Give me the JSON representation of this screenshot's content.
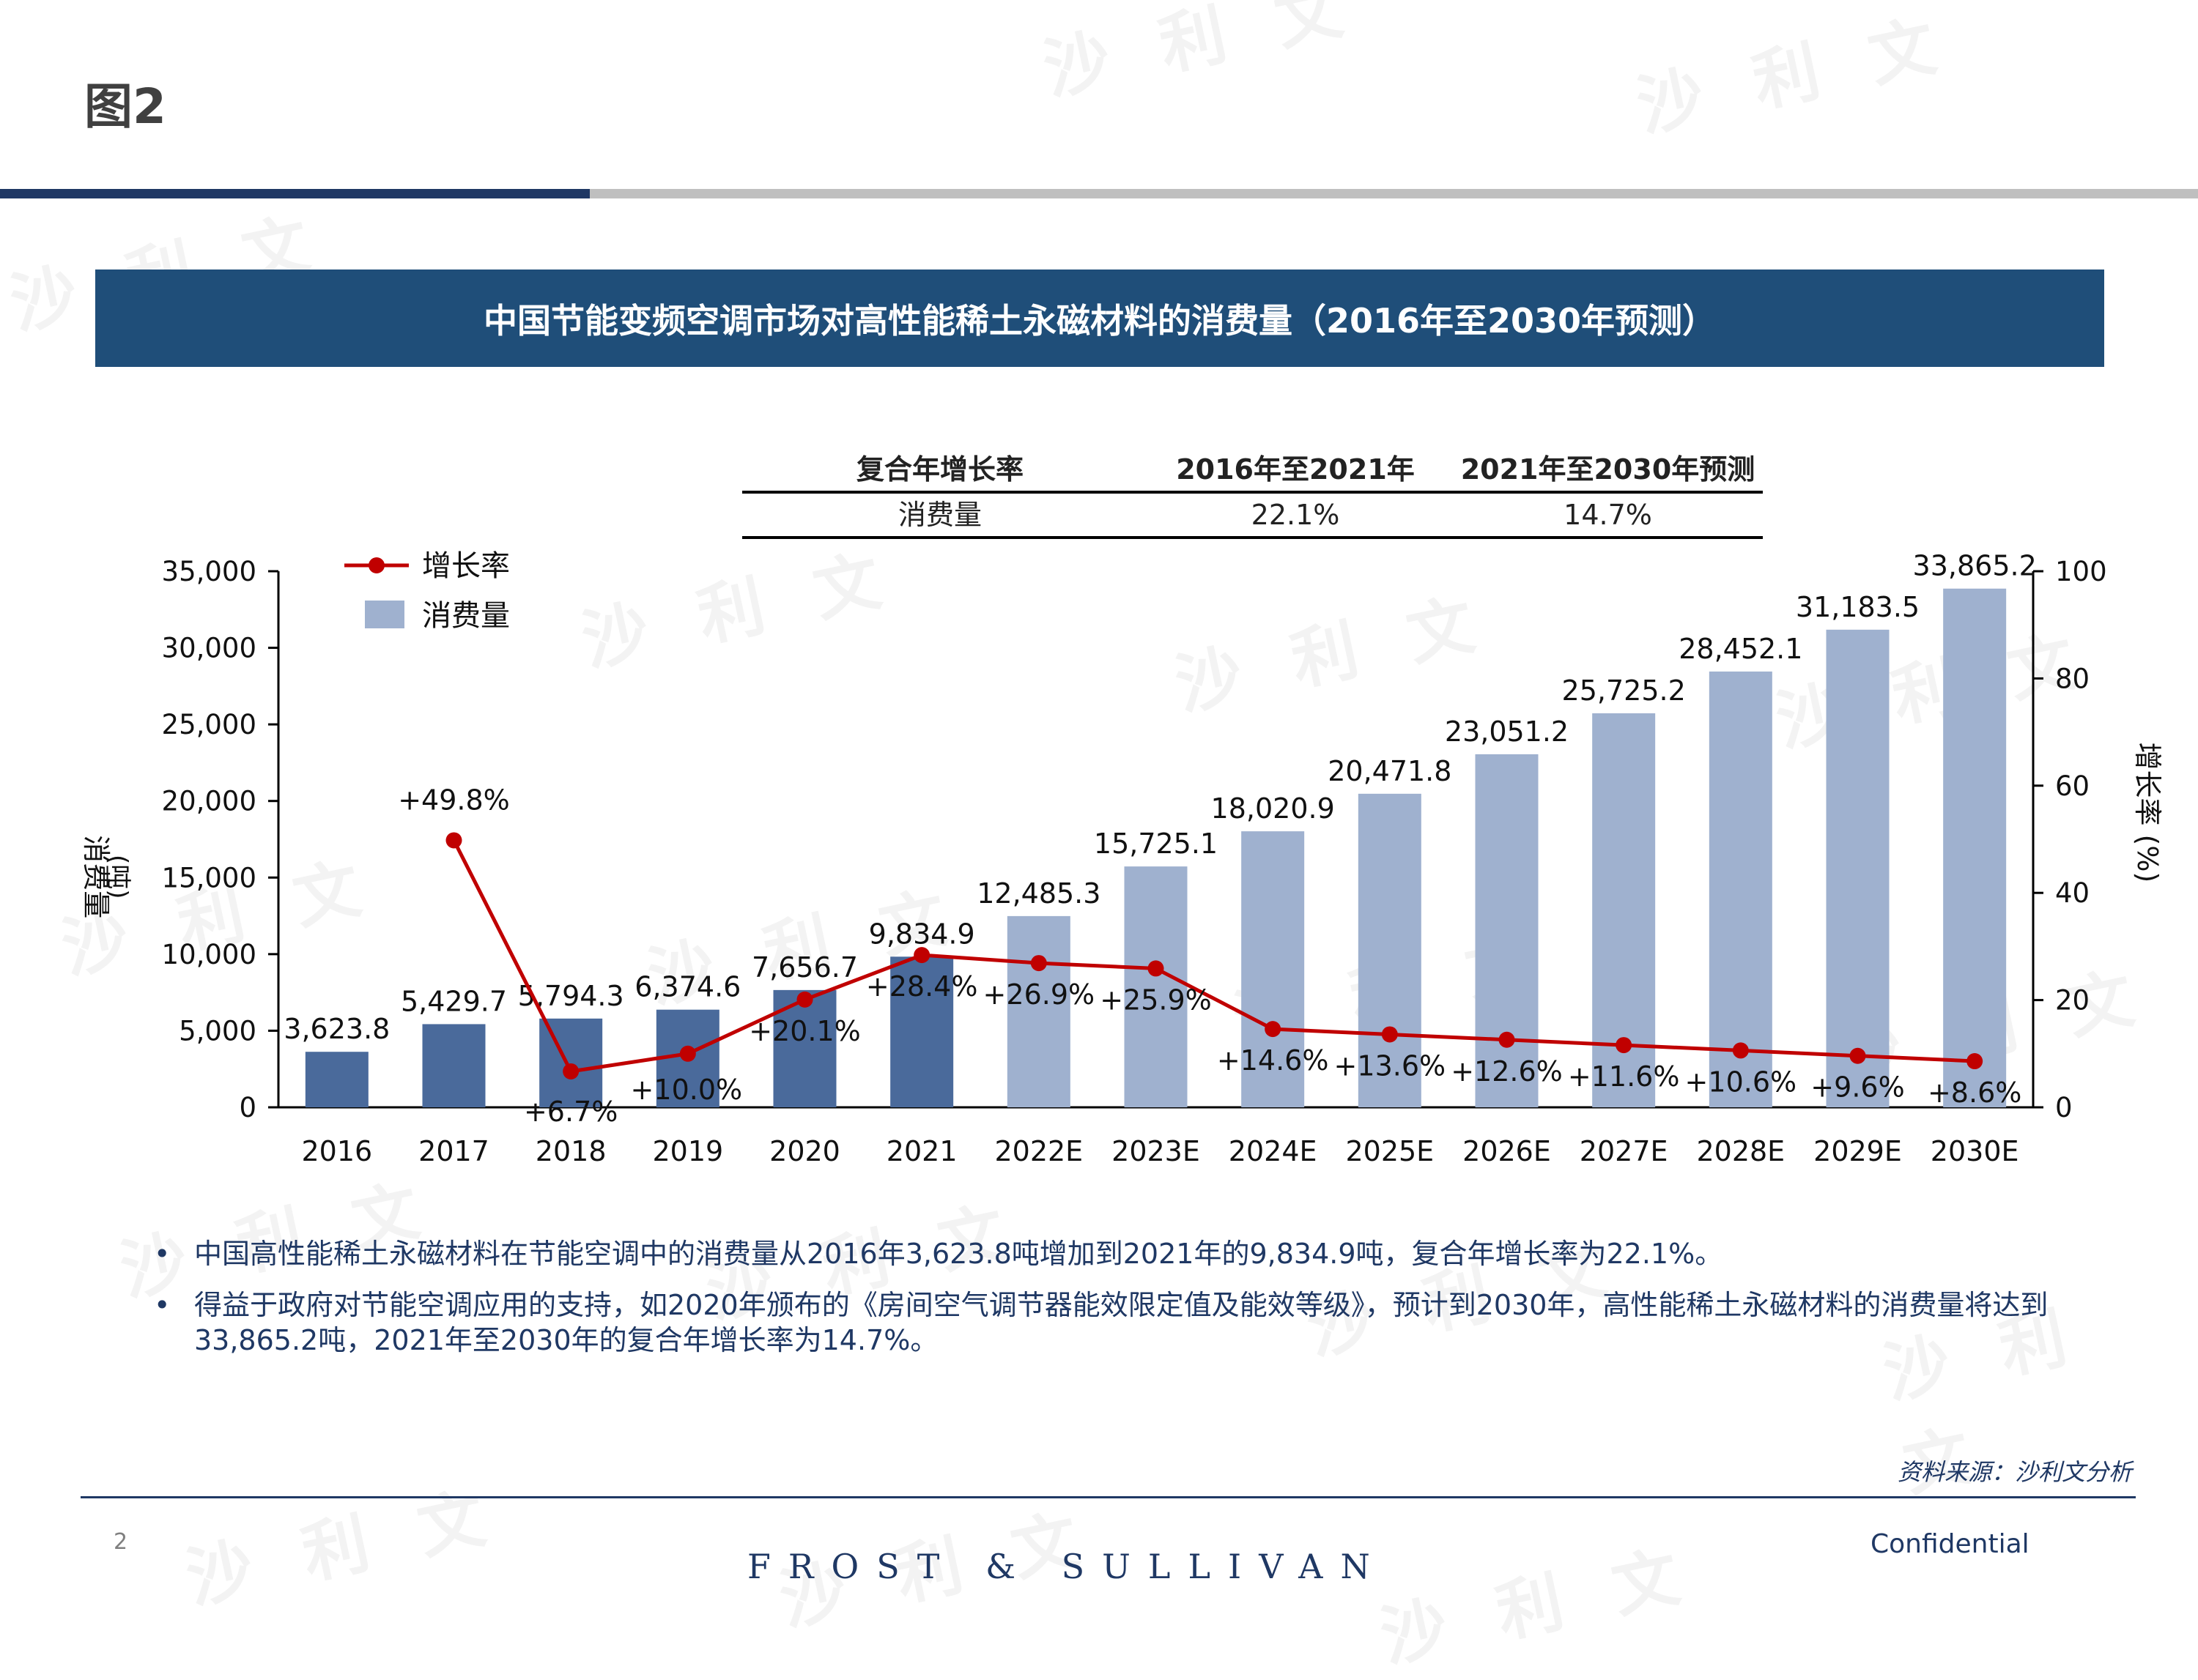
{
  "figure_label": "图2",
  "title": "中国节能变频空调市场对高性能稀土永磁材料的消费量（2016年至2030年预测）",
  "cagr_table": {
    "headers": [
      "复合年增长率",
      "2016年至2021年",
      "2021年至2030年预测"
    ],
    "row": [
      "消费量",
      "22.1%",
      "14.7%"
    ]
  },
  "chart_data": {
    "type": "bar",
    "categories": [
      "2016",
      "2017",
      "2018",
      "2019",
      "2020",
      "2021",
      "2022E",
      "2023E",
      "2024E",
      "2025E",
      "2026E",
      "2027E",
      "2028E",
      "2029E",
      "2030E"
    ],
    "series": [
      {
        "name": "消费量",
        "type": "bar",
        "axis": "left",
        "values": [
          3623.8,
          5429.7,
          5794.3,
          6374.6,
          7656.7,
          9834.9,
          12485.3,
          15725.1,
          18020.9,
          20471.8,
          23051.2,
          25725.2,
          28452.1,
          31183.5,
          33865.2
        ],
        "labels": [
          "3,623.8",
          "5,429.7",
          "5,794.3",
          "6,374.6",
          "7,656.7",
          "9,834.9",
          "12,485.3",
          "15,725.1",
          "18,020.9",
          "20,471.8",
          "23,051.2",
          "25,725.2",
          "28,452.1",
          "31,183.5",
          "33,865.2"
        ]
      },
      {
        "name": "增长率",
        "type": "line",
        "axis": "right",
        "values": [
          null,
          49.8,
          6.7,
          10.0,
          20.1,
          28.4,
          26.9,
          25.9,
          14.6,
          13.6,
          12.6,
          11.6,
          10.6,
          9.6,
          8.6
        ],
        "labels": [
          "",
          "+49.8%",
          "+6.7%",
          "+10.0%",
          "+20.1%",
          "+28.4%",
          "+26.9%",
          "+25.9%",
          "+14.6%",
          "+13.6%",
          "+12.6%",
          "+11.6%",
          "+10.6%",
          "+9.6%",
          "+8.6%"
        ]
      }
    ],
    "ylabel": "消费量\n(吨)",
    "y2label": "增长率 (%)",
    "ylim": [
      0,
      35000
    ],
    "yticks": [
      0,
      5000,
      10000,
      15000,
      20000,
      25000,
      30000,
      35000
    ],
    "ytick_labels": [
      "0",
      "5,000",
      "10,000",
      "15,000",
      "20,000",
      "25,000",
      "30,000",
      "35,000"
    ],
    "y2lim": [
      0,
      100
    ],
    "y2ticks": [
      0,
      20,
      40,
      60,
      80,
      100
    ],
    "y2tick_labels": [
      "0",
      "20",
      "40",
      "60",
      "80",
      "100"
    ],
    "actual_count": 6,
    "colors": {
      "actual": "#4a6a9b",
      "forecast": "#9fb1cf",
      "line": "#c00000"
    },
    "legend": {
      "position": "top-left",
      "items": [
        "增长率",
        "消费量"
      ]
    }
  },
  "bullets": [
    "中国高性能稀土永磁材料在节能空调中的消费量从2016年3,623.8吨增加到2021年的9,834.9吨，复合年增长率为22.1%。",
    "得益于政府对节能空调应用的支持，如2020年颁布的《房间空气调节器能效限定值及能效等级》，预计到2030年，高性能稀土永磁材料的消费量将达到33,865.2吨，2021年至2030年的复合年增长率为14.7%。"
  ],
  "bullet_symbol": "•",
  "source": "资料来源：沙利文分析",
  "page_number": "2",
  "brand": "FROST & SULLIVAN",
  "confidential": "Confidential",
  "watermark": "沙 利 文"
}
